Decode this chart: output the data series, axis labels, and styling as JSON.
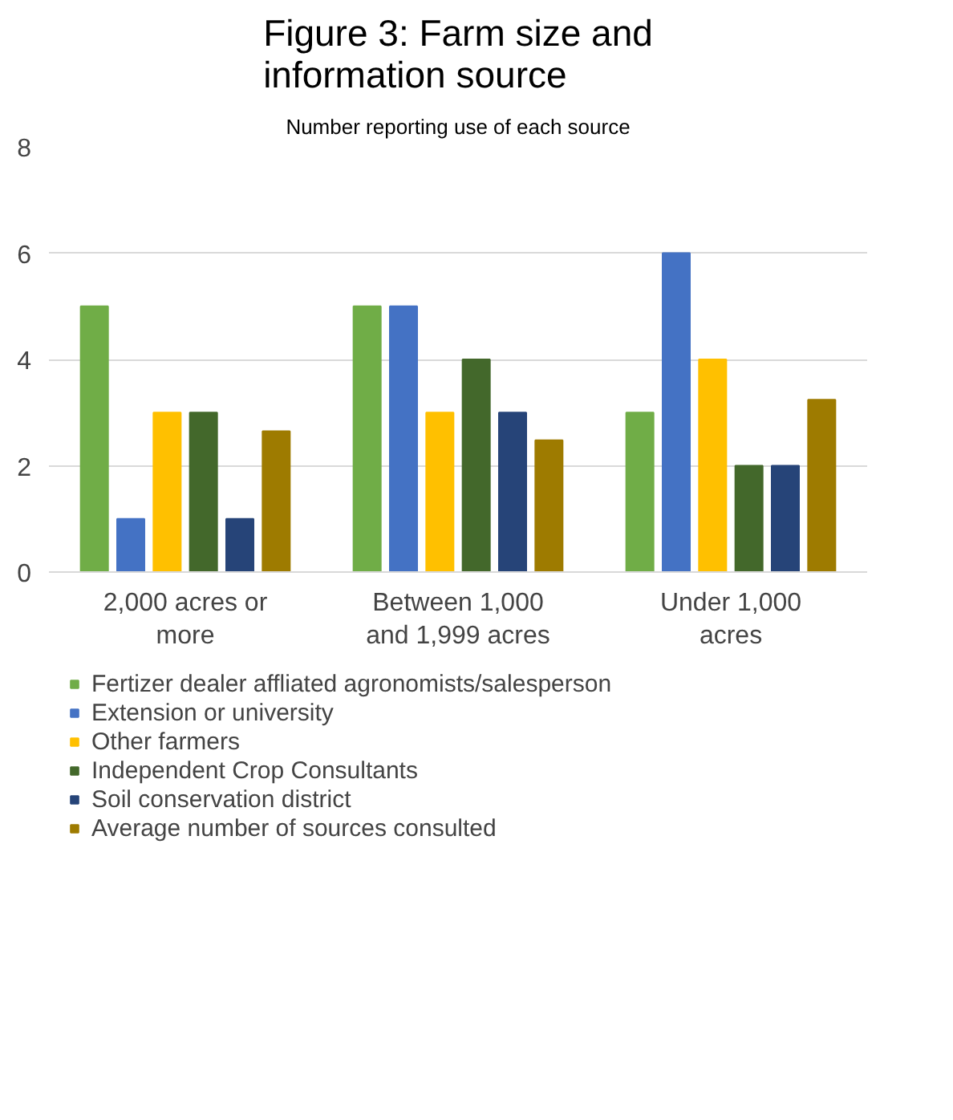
{
  "chart_data": {
    "type": "bar",
    "title": "Figure 3: Farm size and information source",
    "subtitle": "Number reporting use of each source",
    "categories": [
      "2,000 acres or more",
      "Between 1,000 and 1,999 acres",
      "Under 1,000 acres"
    ],
    "series": [
      {
        "name": "Fertizer dealer affliated agronomists/salesperson",
        "color": "#70ad47",
        "values": [
          5,
          5,
          3
        ]
      },
      {
        "name": "Extension or university",
        "color": "#4472c4",
        "values": [
          1,
          5,
          6
        ]
      },
      {
        "name": "Other farmers",
        "color": "#ffc000",
        "values": [
          3,
          3,
          4
        ]
      },
      {
        "name": "Independent Crop Consultants",
        "color": "#43682b",
        "values": [
          3,
          4,
          2
        ]
      },
      {
        "name": "Soil conservation district",
        "color": "#264478",
        "values": [
          1,
          3,
          2
        ]
      },
      {
        "name": "Average number of sources consulted",
        "color": "#9e7b00",
        "values": [
          2.65,
          2.48,
          3.24
        ]
      }
    ],
    "ylim": [
      0,
      8
    ],
    "yticks": [
      0,
      2,
      4,
      6,
      8
    ],
    "grid": "y",
    "legend": "bottom"
  }
}
